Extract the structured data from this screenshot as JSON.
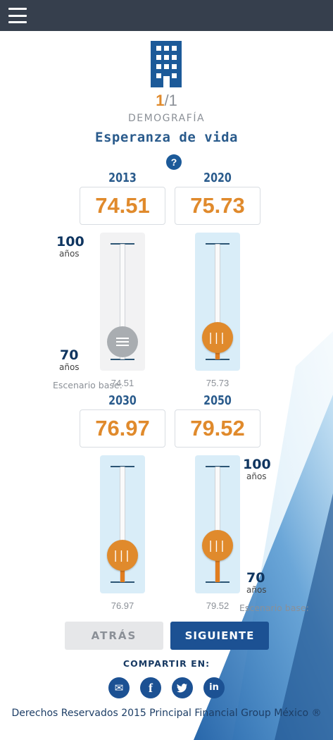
{
  "header": {
    "menu_icon": "hamburger-menu-icon"
  },
  "category_icon": "building-icon",
  "pager": {
    "current": "1",
    "separator": "/",
    "total": "1"
  },
  "section_label": "DEMOGRAFÍA",
  "title": "Esperanza de vida",
  "help_label": "?",
  "scale": {
    "max": "100",
    "min": "70",
    "unit": "años",
    "range": [
      70,
      100
    ]
  },
  "base_label": "Escenario base:",
  "sliders": [
    {
      "year": "2013",
      "value": "74.51",
      "base": "74.51",
      "fraction": 0.15,
      "locked": true
    },
    {
      "year": "2020",
      "value": "75.73",
      "base": "75.73",
      "fraction": 0.191,
      "locked": false
    },
    {
      "year": "2030",
      "value": "76.97",
      "base": "76.97",
      "fraction": 0.232,
      "locked": false
    },
    {
      "year": "2050",
      "value": "79.52",
      "base": "79.52",
      "fraction": 0.317,
      "locked": false
    }
  ],
  "buttons": {
    "back": "ATRÁS",
    "next": "SIGUIENTE"
  },
  "share": {
    "label": "COMPARTIR EN:",
    "networks": [
      {
        "name": "email",
        "icon": "envelope-icon",
        "glyph": "✉"
      },
      {
        "name": "facebook",
        "icon": "facebook-icon",
        "glyph": "f"
      },
      {
        "name": "twitter",
        "icon": "twitter-icon",
        "glyph": "🐦"
      },
      {
        "name": "linkedin",
        "icon": "linkedin-icon",
        "glyph": "in"
      }
    ]
  },
  "footer": "Derechos Reservados 2015 Principal Financial Group México ®",
  "colors": {
    "accent_orange": "#e08a2c",
    "brand_blue": "#1c5193",
    "topbar": "#363f4d"
  }
}
